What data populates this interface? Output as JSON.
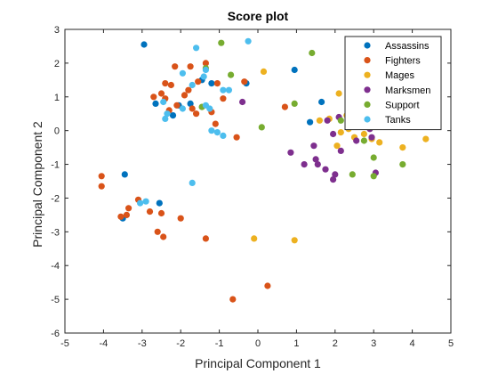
{
  "chart_data": {
    "type": "scatter",
    "title": "Score plot",
    "xlabel": "Principal Component 1",
    "ylabel": "Principal Component 2",
    "xlim": [
      -5,
      5
    ],
    "ylim": [
      -6,
      3
    ],
    "xticks": [
      "-5",
      "-4",
      "-3",
      "-2",
      "-1",
      "0",
      "1",
      "2",
      "3",
      "4",
      "5"
    ],
    "yticks": [
      "3",
      "2",
      "1",
      "0",
      "-1",
      "-2",
      "-3",
      "-4",
      "-5",
      "-6"
    ],
    "grid": false,
    "legend_position": "top-right",
    "series": [
      {
        "name": "Assassins",
        "color": "#0072bd",
        "points": [
          [
            -2.95,
            2.55
          ],
          [
            -2.65,
            0.8
          ],
          [
            -2.2,
            0.45
          ],
          [
            -2.05,
            0.75
          ],
          [
            -1.75,
            0.8
          ],
          [
            -1.45,
            1.5
          ],
          [
            -1.2,
            1.4
          ],
          [
            -0.3,
            1.4
          ],
          [
            0.95,
            1.8
          ],
          [
            1.35,
            0.25
          ],
          [
            1.65,
            0.85
          ],
          [
            -3.45,
            -1.3
          ],
          [
            -2.55,
            -2.15
          ],
          [
            -3.5,
            -2.6
          ]
        ]
      },
      {
        "name": "Fighters",
        "color": "#d95319",
        "points": [
          [
            -2.15,
            1.9
          ],
          [
            -1.75,
            1.9
          ],
          [
            -1.35,
            2.0
          ],
          [
            -1.05,
            1.4
          ],
          [
            -0.35,
            1.45
          ],
          [
            -1.55,
            1.45
          ],
          [
            -2.4,
            1.4
          ],
          [
            -2.25,
            1.35
          ],
          [
            -2.5,
            1.1
          ],
          [
            -2.7,
            1.0
          ],
          [
            -2.4,
            0.95
          ],
          [
            -2.1,
            0.75
          ],
          [
            -1.8,
            1.2
          ],
          [
            -1.9,
            1.05
          ],
          [
            -1.7,
            0.65
          ],
          [
            -1.6,
            0.5
          ],
          [
            -2.3,
            0.6
          ],
          [
            -0.9,
            0.95
          ],
          [
            -1.2,
            0.55
          ],
          [
            -1.1,
            0.2
          ],
          [
            -0.55,
            -0.2
          ],
          [
            0.7,
            0.7
          ],
          [
            -4.05,
            -1.35
          ],
          [
            -4.05,
            -1.65
          ],
          [
            -3.55,
            -2.55
          ],
          [
            -3.35,
            -2.3
          ],
          [
            -3.1,
            -2.05
          ],
          [
            -2.8,
            -2.4
          ],
          [
            -2.5,
            -2.45
          ],
          [
            -3.4,
            -2.5
          ],
          [
            -2.0,
            -2.6
          ],
          [
            -2.6,
            -3.0
          ],
          [
            -2.45,
            -3.15
          ],
          [
            -1.35,
            -3.2
          ],
          [
            0.25,
            -4.6
          ],
          [
            -0.65,
            -5.0
          ]
        ]
      },
      {
        "name": "Mages",
        "color": "#edb120",
        "points": [
          [
            0.15,
            1.75
          ],
          [
            2.1,
            1.1
          ],
          [
            1.85,
            0.35
          ],
          [
            2.3,
            0.45
          ],
          [
            2.6,
            0.55
          ],
          [
            2.35,
            0.05
          ],
          [
            2.15,
            -0.05
          ],
          [
            2.75,
            -0.1
          ],
          [
            2.95,
            -0.25
          ],
          [
            3.15,
            -0.35
          ],
          [
            3.75,
            -0.5
          ],
          [
            4.35,
            -0.25
          ],
          [
            2.05,
            -0.45
          ],
          [
            1.6,
            0.3
          ],
          [
            2.5,
            -0.2
          ],
          [
            -0.1,
            -3.2
          ],
          [
            0.95,
            -3.25
          ]
        ]
      },
      {
        "name": "Marksmen",
        "color": "#7e2f8e",
        "points": [
          [
            -0.4,
            0.85
          ],
          [
            1.8,
            0.3
          ],
          [
            2.1,
            0.4
          ],
          [
            1.95,
            -0.1
          ],
          [
            2.7,
            0.25
          ],
          [
            2.9,
            0.05
          ],
          [
            2.55,
            -0.3
          ],
          [
            2.95,
            -0.2
          ],
          [
            0.85,
            -0.65
          ],
          [
            1.45,
            -0.45
          ],
          [
            1.5,
            -0.85
          ],
          [
            1.55,
            -1.0
          ],
          [
            1.2,
            -1.0
          ],
          [
            1.75,
            -1.15
          ],
          [
            2.0,
            -1.3
          ],
          [
            1.95,
            -1.45
          ],
          [
            3.05,
            -1.25
          ],
          [
            2.15,
            -0.6
          ]
        ]
      },
      {
        "name": "Support",
        "color": "#77ac30",
        "points": [
          [
            -0.95,
            2.6
          ],
          [
            1.4,
            2.3
          ],
          [
            -1.35,
            1.85
          ],
          [
            -0.7,
            1.65
          ],
          [
            0.95,
            0.8
          ],
          [
            2.15,
            0.3
          ],
          [
            2.75,
            -0.3
          ],
          [
            3.0,
            -0.8
          ],
          [
            3.75,
            -1.0
          ],
          [
            2.45,
            -1.3
          ],
          [
            3.0,
            -1.35
          ],
          [
            0.1,
            0.1
          ],
          [
            -1.45,
            0.7
          ]
        ]
      },
      {
        "name": "Tanks",
        "color": "#4dbeee",
        "points": [
          [
            -1.6,
            2.45
          ],
          [
            -0.25,
            2.65
          ],
          [
            -1.95,
            1.7
          ],
          [
            -1.35,
            1.8
          ],
          [
            -1.4,
            1.6
          ],
          [
            -1.7,
            1.35
          ],
          [
            -0.9,
            1.2
          ],
          [
            -0.75,
            1.2
          ],
          [
            -1.95,
            0.65
          ],
          [
            -2.35,
            0.5
          ],
          [
            -2.45,
            0.85
          ],
          [
            -2.4,
            0.35
          ],
          [
            -1.35,
            0.75
          ],
          [
            -1.05,
            -0.05
          ],
          [
            -1.2,
            0.0
          ],
          [
            -0.9,
            -0.15
          ],
          [
            -1.25,
            0.65
          ],
          [
            -2.9,
            -2.1
          ],
          [
            -1.7,
            -1.55
          ],
          [
            -3.05,
            -2.15
          ]
        ]
      }
    ]
  }
}
